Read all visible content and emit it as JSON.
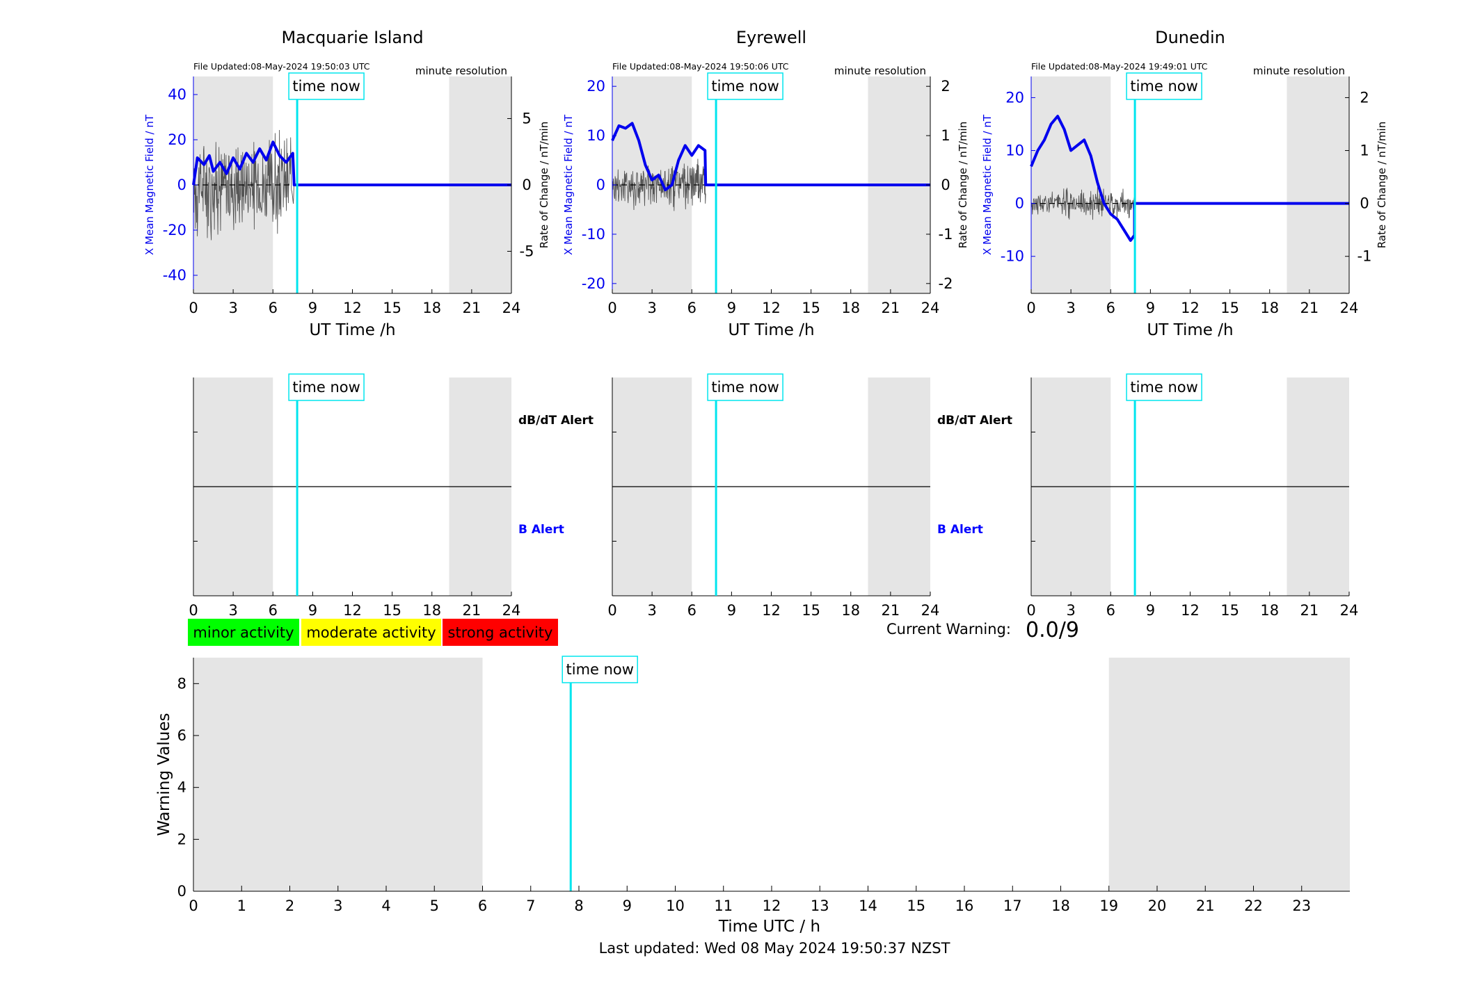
{
  "footer": "Last updated: Wed 08 May 2024 19:50:37 NZST",
  "current_warning": {
    "label": "Current Warning:",
    "value": "0.0/9"
  },
  "legend": [
    {
      "label": "minor activity",
      "color": "#00ff00"
    },
    {
      "label": "moderate activity",
      "color": "#ffff00"
    },
    {
      "label": "strong activity",
      "color": "#ff0000"
    }
  ],
  "colors": {
    "field": "#0000ee",
    "rate": "#555555",
    "now_line": "#00e5ee",
    "night": "#e5e5e5",
    "b_alert": "#0000ff"
  },
  "time_now_label": "time now",
  "stations": [
    {
      "name": "Macquarie Island",
      "file_updated": "File Updated:08-May-2024 19:50:03 UTC",
      "resolution": "minute resolution",
      "xlabel": "UT Time /h",
      "ylabel_left": "X Mean Magnetic Field / nT",
      "ylabel_right": "Rate of Change / nT/min",
      "ylim_left": [
        -48,
        48
      ],
      "yticks_left": [
        -40,
        -20,
        0,
        20,
        40
      ],
      "ylim_right": [
        -8.17,
        8.17
      ],
      "yticks_right": [
        -5,
        0,
        5
      ],
      "field_trace": [
        [
          0,
          0
        ],
        [
          0.3,
          12
        ],
        [
          0.8,
          9
        ],
        [
          1.2,
          13
        ],
        [
          1.5,
          6
        ],
        [
          2,
          10
        ],
        [
          2.5,
          5
        ],
        [
          3,
          12
        ],
        [
          3.5,
          7
        ],
        [
          4,
          14
        ],
        [
          4.5,
          10
        ],
        [
          5,
          16
        ],
        [
          5.5,
          11
        ],
        [
          6,
          19
        ],
        [
          6.5,
          13
        ],
        [
          7,
          10
        ],
        [
          7.5,
          14
        ],
        [
          7.6,
          0
        ],
        [
          24,
          0
        ]
      ],
      "rate_span": [
        0,
        7.6
      ],
      "rate_amp": 3.5
    },
    {
      "name": "Eyrewell",
      "file_updated": "File Updated:08-May-2024 19:50:06 UTC",
      "resolution": "minute resolution",
      "xlabel": "UT Time /h",
      "ylabel_left": "X Mean Magnetic Field / nT",
      "ylabel_right": "Rate of Change / nT/min",
      "ylim_left": [
        -22,
        22
      ],
      "yticks_left": [
        -20,
        -10,
        0,
        10,
        20
      ],
      "ylim_right": [
        -2.2,
        2.2
      ],
      "yticks_right": [
        -2,
        -1,
        0,
        1,
        2
      ],
      "field_trace": [
        [
          0,
          9
        ],
        [
          0.5,
          12
        ],
        [
          1,
          11.5
        ],
        [
          1.5,
          12.5
        ],
        [
          2,
          9
        ],
        [
          2.5,
          4
        ],
        [
          3,
          1
        ],
        [
          3.5,
          2
        ],
        [
          4,
          -1
        ],
        [
          4.5,
          0
        ],
        [
          5,
          5
        ],
        [
          5.5,
          8
        ],
        [
          6,
          6
        ],
        [
          6.5,
          8
        ],
        [
          7,
          7
        ],
        [
          7.05,
          0
        ],
        [
          24,
          0
        ]
      ],
      "rate_span": [
        0,
        7.05
      ],
      "rate_amp": 0.45
    },
    {
      "name": "Dunedin",
      "file_updated": "File Updated:08-May-2024 19:49:01 UTC",
      "resolution": "minute resolution",
      "xlabel": "UT Time /h",
      "ylabel_left": "X Mean Magnetic Field / nT",
      "ylabel_right": "Rate of Change / nT/min",
      "ylim_left": [
        -17,
        24
      ],
      "yticks_left": [
        -10,
        0,
        10,
        20
      ],
      "ylim_right": [
        -1.7,
        2.4
      ],
      "yticks_right": [
        -1,
        0,
        1,
        2
      ],
      "field_trace": [
        [
          0,
          7
        ],
        [
          0.5,
          10
        ],
        [
          1,
          12
        ],
        [
          1.5,
          15
        ],
        [
          2,
          16.5
        ],
        [
          2.5,
          14
        ],
        [
          3,
          10
        ],
        [
          3.5,
          11
        ],
        [
          4,
          12
        ],
        [
          4.5,
          9
        ],
        [
          5,
          4
        ],
        [
          5.5,
          0
        ],
        [
          6,
          -2
        ],
        [
          6.5,
          -3
        ],
        [
          7,
          -5
        ],
        [
          7.5,
          -7
        ],
        [
          7.8,
          -6
        ],
        [
          7.8,
          0
        ],
        [
          24,
          0
        ]
      ],
      "rate_span": [
        0,
        7.8
      ],
      "rate_amp": 0.25
    }
  ],
  "alert_panels": {
    "db_label": "dB/dT Alert",
    "b_label": "B Alert",
    "xticks": [
      0,
      3,
      6,
      9,
      12,
      15,
      18,
      21,
      24
    ]
  },
  "chart_data": {
    "type": "line",
    "xlabel": "Time UTC / h",
    "ylabel": "Warning Values",
    "xlim": [
      0,
      24
    ],
    "ylim": [
      0,
      9
    ],
    "xticks": [
      0,
      1,
      2,
      3,
      4,
      5,
      6,
      7,
      8,
      9,
      10,
      11,
      12,
      13,
      14,
      15,
      16,
      17,
      18,
      19,
      20,
      21,
      22,
      23
    ],
    "yticks": [
      0,
      2,
      4,
      6,
      8
    ],
    "night_shading": [
      [
        0,
        6
      ],
      [
        19,
        24
      ]
    ],
    "time_now": 7.83,
    "series": []
  }
}
